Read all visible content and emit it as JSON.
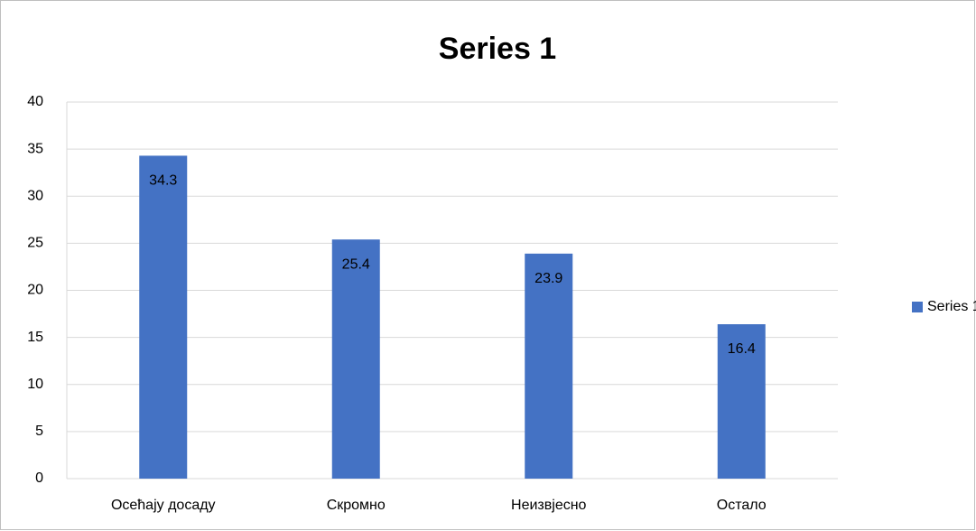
{
  "chart_data": {
    "type": "bar",
    "title": "Series 1",
    "categories": [
      "Осећају досаду",
      "Скромно",
      "Неизвјесно",
      "Остало"
    ],
    "series": [
      {
        "name": "Series 1",
        "color": "#4472c4",
        "values": [
          34.3,
          25.4,
          23.9,
          16.4
        ]
      }
    ],
    "ylim": [
      0,
      40
    ],
    "yticks": [
      0,
      5,
      10,
      15,
      20,
      25,
      30,
      35,
      40
    ],
    "grid": true,
    "legend": "right"
  }
}
